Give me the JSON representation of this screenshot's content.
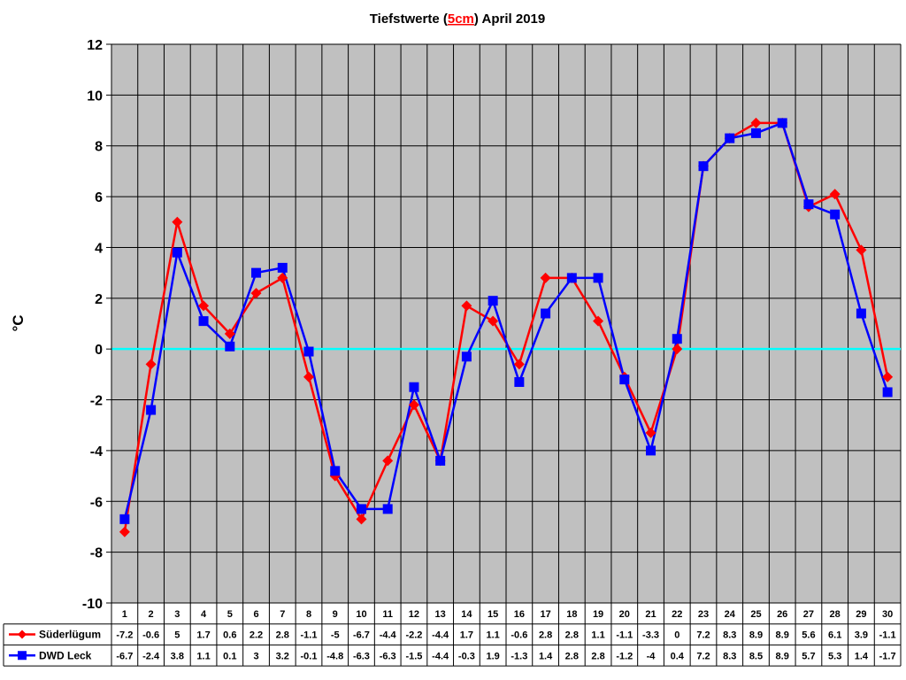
{
  "chart_data": {
    "type": "line",
    "title": {
      "prefix": "Tiefstwerte (",
      "highlight": "5cm",
      "suffix": ") April 2019",
      "highlight_color": "#ff0000"
    },
    "ylabel": "°C",
    "xlabel": "",
    "ylim": [
      -10,
      12
    ],
    "ytick_step": 2,
    "grid": true,
    "plot_background": "#c0c0c0",
    "grid_color": "#000000",
    "zero_line_color": "#00ffff",
    "legend_placement": "data-table-left",
    "categories": [
      "1",
      "2",
      "3",
      "4",
      "5",
      "6",
      "7",
      "8",
      "9",
      "10",
      "11",
      "12",
      "13",
      "14",
      "15",
      "16",
      "17",
      "18",
      "19",
      "20",
      "21",
      "22",
      "23",
      "24",
      "25",
      "26",
      "27",
      "28",
      "29",
      "30"
    ],
    "series": [
      {
        "name": "Süderlügum",
        "color": "#ff0000",
        "marker": "diamond",
        "values": [
          -7.2,
          -0.6,
          5,
          1.7,
          0.6,
          2.2,
          2.8,
          -1.1,
          -5,
          -6.7,
          -4.4,
          -2.2,
          -4.4,
          1.7,
          1.1,
          -0.6,
          2.8,
          2.8,
          1.1,
          -1.1,
          -3.3,
          0,
          7.2,
          8.3,
          8.9,
          8.9,
          5.6,
          6.1,
          3.9,
          -1.1
        ]
      },
      {
        "name": "DWD Leck",
        "color": "#0000ff",
        "marker": "square",
        "values": [
          -6.7,
          -2.4,
          3.8,
          1.1,
          0.1,
          3,
          3.2,
          -0.1,
          -4.8,
          -6.3,
          -6.3,
          -1.5,
          -4.4,
          -0.3,
          1.9,
          -1.3,
          1.4,
          2.8,
          2.8,
          -1.2,
          -4,
          0.4,
          7.2,
          8.3,
          8.5,
          8.9,
          5.7,
          5.3,
          1.4,
          -1.7
        ]
      }
    ]
  }
}
